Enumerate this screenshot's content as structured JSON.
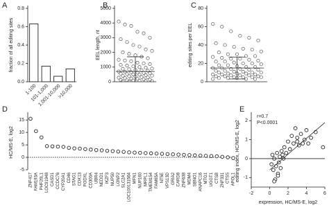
{
  "chart_data": [
    {
      "type": "bar",
      "label": "A",
      "ylabel": "fraction of all editing sites",
      "categories": [
        "1-100",
        "101-1,000",
        "1,001-10,000",
        ">10,000"
      ],
      "values": [
        0.63,
        0.17,
        0.06,
        0.14
      ],
      "color": "#ffffff",
      "ylim": [
        0,
        0.8
      ],
      "yticks": [
        {
          "value": 0,
          "label": "0.0"
        },
        {
          "value": 0.2,
          "label": "0.2"
        },
        {
          "value": 0.4,
          "label": "0.4"
        },
        {
          "value": 0.6,
          "label": "0.6"
        },
        {
          "value": 0.8,
          "label": "0.8"
        }
      ]
    },
    {
      "type": "strip",
      "label": "B",
      "ylabel": "EEL length, nt",
      "values": [
        4100,
        3900,
        3800,
        3400,
        3300,
        3000,
        2900,
        2700,
        2500,
        2400,
        2200,
        2100,
        2000,
        1900,
        1800,
        1700,
        1600,
        1500,
        1450,
        1400,
        1300,
        1250,
        1200,
        1150,
        1100,
        1050,
        1000,
        950,
        900,
        880,
        850,
        800,
        780,
        750,
        700,
        680,
        650,
        620,
        600,
        580,
        550,
        520,
        500,
        480,
        450,
        420,
        400,
        380,
        350,
        320,
        300,
        280,
        250,
        220,
        200,
        180,
        150,
        120,
        100,
        80,
        60,
        50,
        40,
        30,
        20
      ],
      "mean": 700,
      "sd": 1000,
      "ylim": [
        0,
        5000
      ],
      "yticks": [
        0,
        1000,
        2000,
        3000,
        4000,
        5000
      ]
    },
    {
      "type": "strip",
      "label": "C",
      "ylabel": "editing sites per EEL",
      "values": [
        63,
        60,
        55,
        50,
        48,
        45,
        42,
        40,
        38,
        36,
        35,
        33,
        32,
        30,
        30,
        28,
        28,
        27,
        26,
        25,
        25,
        24,
        23,
        22,
        22,
        21,
        20,
        20,
        19,
        18,
        18,
        17,
        16,
        16,
        15,
        15,
        14,
        14,
        13,
        13,
        12,
        12,
        11,
        11,
        10,
        10,
        10,
        9,
        9,
        9,
        8,
        8,
        8,
        7,
        7,
        7,
        6,
        6,
        6,
        5,
        5,
        5,
        5,
        4,
        4,
        4,
        3,
        3,
        3
      ],
      "mean": 15,
      "sd": 12,
      "ylim": [
        0,
        80
      ],
      "yticks": [
        0,
        20,
        40,
        60,
        80
      ]
    },
    {
      "type": "dot",
      "label": "D",
      "ylabel": "HC/MS-E, log2",
      "categories": [
        "ZNF417",
        "FAM193A",
        "PHF20L1",
        "LOC91948",
        "CASD1",
        "CCDC76",
        "CYP20A1",
        "CD46",
        "STAG1",
        "CDK13",
        "PODXL",
        "CD300A",
        "UBR4",
        "NEDD1",
        "IKZF3",
        "NUP50",
        "LONP2",
        "SLC2A1",
        "LOC100131564",
        "MFN1",
        "NUP160",
        "MRPL1",
        "TMEM154",
        "FAM65A",
        "NT5E",
        "VPS13D",
        "GRIA2",
        "CARD8",
        "ZNF638",
        "MDM4",
        "SBNO1",
        "ANAPC16",
        "MTG1",
        "UGGT1",
        "CTSB",
        "ZNF331",
        "CTSS",
        "APOL1"
      ],
      "values": [
        15.5,
        10.5,
        8,
        4.5,
        4.4,
        4.3,
        4.2,
        3.8,
        3.6,
        3.5,
        3.3,
        3.1,
        2.9,
        2.8,
        2.6,
        2.5,
        2.3,
        2.2,
        2.0,
        1.9,
        1.8,
        1.7,
        1.6,
        1.5,
        1.4,
        1.3,
        1.2,
        1.1,
        1.0,
        0.9,
        0.8,
        0.7,
        0.6,
        0.5,
        0.4,
        0.2,
        0,
        -0.3
      ],
      "reference_line": 0,
      "ylim": [
        -5,
        17
      ],
      "yticks": [
        -5,
        0,
        5,
        10,
        15
      ]
    },
    {
      "type": "scatter",
      "label": "E",
      "xlabel": "expression, HC/MS-E, log2",
      "ylabel": "editing index, HC/MS-E, log2",
      "annotations": [
        "r=0.7",
        "P<0.0001"
      ],
      "x": [
        0.2,
        0.3,
        0.4,
        0.5,
        0.6,
        0.7,
        0.8,
        0.9,
        1.0,
        1.1,
        1.2,
        1.3,
        1.5,
        1.6,
        1.8,
        2.0,
        2.2,
        2.4,
        2.6,
        2.8,
        3.0,
        3.2,
        3.4,
        3.6,
        3.8,
        4.0,
        4.2,
        4.5,
        5.0,
        5.8,
        0.5,
        0.9,
        1.4,
        3.0
      ],
      "y": [
        -0.3,
        0.2,
        -0.6,
        0.0,
        -1.1,
        -0.4,
        0.3,
        -0.8,
        -0.2,
        0.1,
        -0.5,
        0.4,
        0.0,
        0.6,
        0.3,
        0.9,
        0.5,
        1.2,
        0.8,
        1.6,
        1.1,
        0.7,
        1.3,
        0.8,
        1.0,
        1.5,
        0.8,
        1.1,
        1.4,
        0.6,
        -1.2,
        -0.9,
        0.2,
        0.9
      ],
      "trendline": {
        "x": [
          0,
          6
        ],
        "y": [
          -0.6,
          1.9
        ]
      },
      "reference_line": 0,
      "xlim": [
        -2,
        6
      ],
      "xticks": [
        -2,
        0,
        2,
        4,
        6
      ],
      "ylim": [
        -1.5,
        2.3
      ],
      "yticks": [
        -1,
        0,
        1,
        2
      ]
    }
  ]
}
